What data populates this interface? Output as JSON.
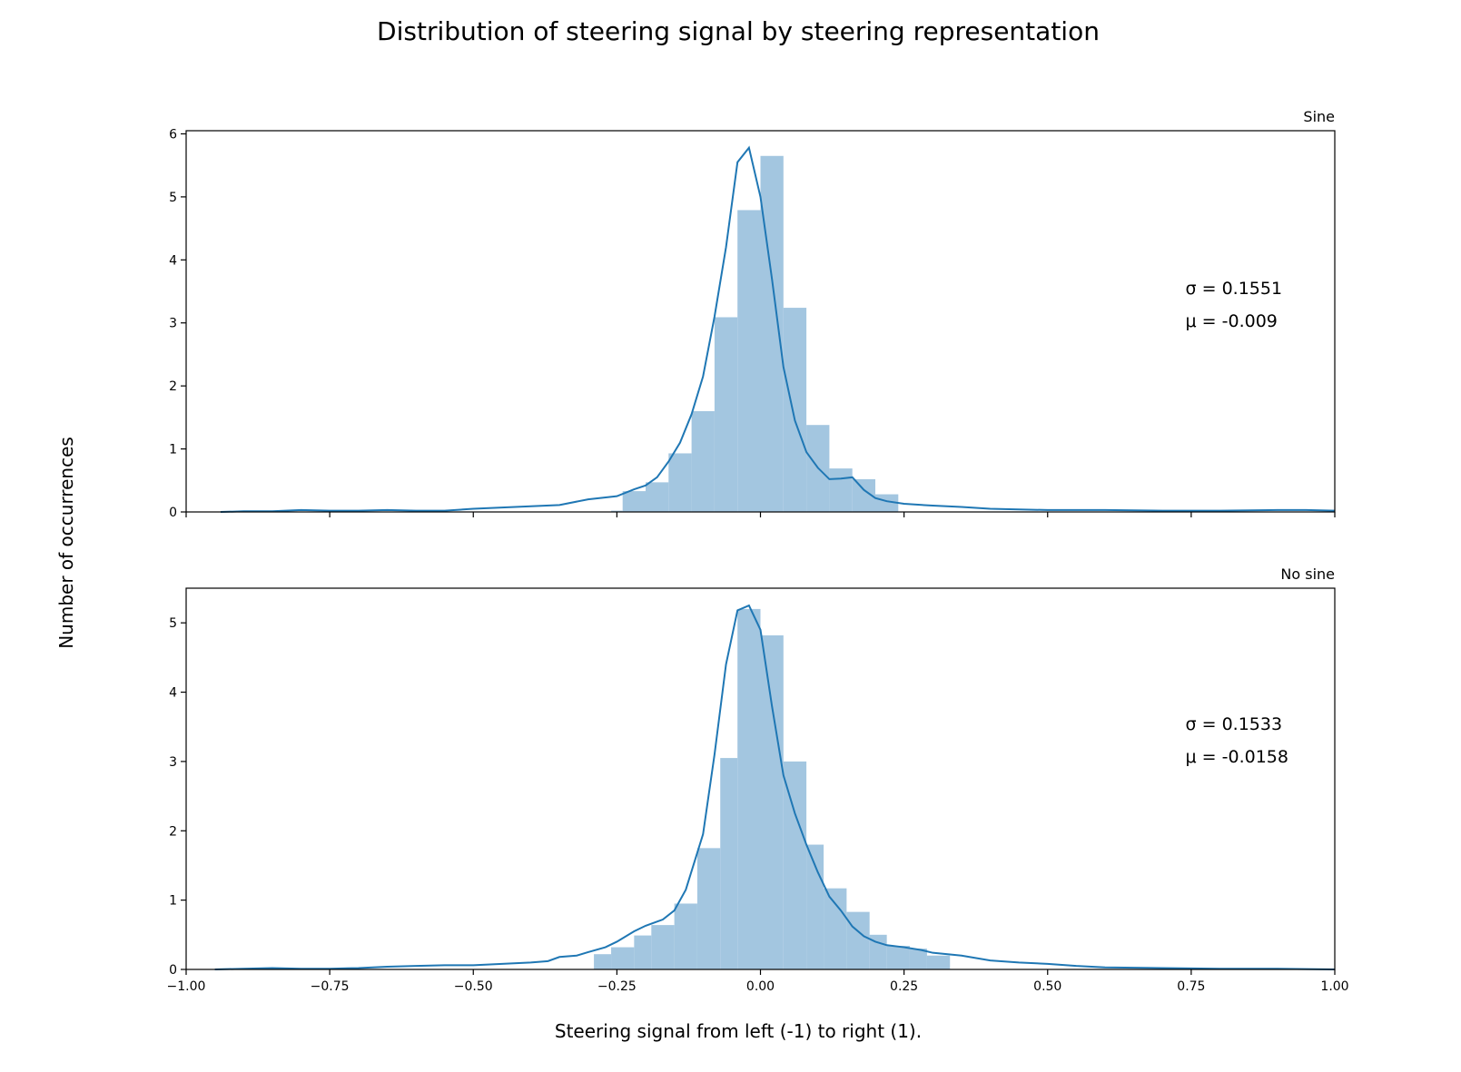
{
  "figure": {
    "title": "Distribution of steering signal by steering representation",
    "xlabel": "Steering signal from left (-1) to right (1).",
    "ylabel": "Number of occurrences"
  },
  "colors": {
    "bar": "#a3c6e0",
    "line": "#1f77b4",
    "axis": "#000000"
  },
  "chart_data": [
    {
      "type": "bar",
      "title": "Sine",
      "xlim": [
        -1.0,
        1.0
      ],
      "ylim": [
        0,
        6.05
      ],
      "xticks": [
        "−1.00",
        "−0.75",
        "−0.50",
        "−0.25",
        "0.00",
        "0.25",
        "0.50",
        "0.75",
        "1.00"
      ],
      "xtick_values": [
        -1.0,
        -0.75,
        -0.5,
        -0.25,
        0.0,
        0.25,
        0.5,
        0.75,
        1.0
      ],
      "show_xtick_labels": false,
      "yticks": [
        0,
        1,
        2,
        3,
        4,
        5,
        6
      ],
      "stats": {
        "sigma": "σ = 0.1551",
        "mu": "μ = -0.009"
      },
      "bin_edges": [
        -0.26,
        -0.24,
        -0.2,
        -0.16,
        -0.12,
        -0.08,
        -0.04,
        0.0,
        0.04,
        0.08,
        0.12,
        0.16,
        0.2,
        0.24
      ],
      "values": [
        0.02,
        0.33,
        0.47,
        0.93,
        1.6,
        3.09,
        4.79,
        5.65,
        3.24,
        1.38,
        0.69,
        0.52,
        0.28
      ],
      "kde_x": [
        -0.94,
        -0.9,
        -0.85,
        -0.8,
        -0.75,
        -0.7,
        -0.65,
        -0.6,
        -0.55,
        -0.5,
        -0.45,
        -0.4,
        -0.35,
        -0.3,
        -0.25,
        -0.22,
        -0.2,
        -0.18,
        -0.16,
        -0.14,
        -0.12,
        -0.1,
        -0.08,
        -0.06,
        -0.04,
        -0.02,
        0.0,
        0.02,
        0.04,
        0.06,
        0.08,
        0.1,
        0.12,
        0.14,
        0.16,
        0.18,
        0.2,
        0.22,
        0.25,
        0.3,
        0.35,
        0.4,
        0.45,
        0.5,
        0.6,
        0.7,
        0.8,
        0.9,
        0.95,
        1.0
      ],
      "kde_y": [
        0.0,
        0.01,
        0.01,
        0.03,
        0.02,
        0.02,
        0.03,
        0.02,
        0.02,
        0.05,
        0.07,
        0.09,
        0.11,
        0.2,
        0.25,
        0.36,
        0.42,
        0.55,
        0.8,
        1.1,
        1.55,
        2.15,
        3.1,
        4.2,
        5.55,
        5.78,
        5.0,
        3.7,
        2.3,
        1.45,
        0.95,
        0.7,
        0.52,
        0.53,
        0.55,
        0.35,
        0.22,
        0.17,
        0.13,
        0.1,
        0.08,
        0.05,
        0.04,
        0.03,
        0.03,
        0.02,
        0.02,
        0.03,
        0.03,
        0.02
      ]
    },
    {
      "type": "bar",
      "title": "No sine",
      "xlim": [
        -1.0,
        1.0
      ],
      "ylim": [
        0,
        5.5
      ],
      "xticks": [
        "−1.00",
        "−0.75",
        "−0.50",
        "−0.25",
        "0.00",
        "0.25",
        "0.50",
        "0.75",
        "1.00"
      ],
      "xtick_values": [
        -1.0,
        -0.75,
        -0.5,
        -0.25,
        0.0,
        0.25,
        0.5,
        0.75,
        1.0
      ],
      "show_xtick_labels": true,
      "yticks": [
        0,
        1,
        2,
        3,
        4,
        5
      ],
      "stats": {
        "sigma": "σ = 0.1533",
        "mu": "μ = -0.0158"
      },
      "bin_edges": [
        -0.29,
        -0.26,
        -0.22,
        -0.19,
        -0.15,
        -0.11,
        -0.07,
        -0.04,
        -0.0,
        0.04,
        0.08,
        0.11,
        0.15,
        0.19,
        0.22,
        0.26,
        0.29,
        0.33
      ],
      "values": [
        0.22,
        0.32,
        0.49,
        0.64,
        0.95,
        1.75,
        3.05,
        5.2,
        4.82,
        3.0,
        1.8,
        1.17,
        0.83,
        0.5,
        0.34,
        0.3,
        0.2
      ],
      "kde_x": [
        -0.95,
        -0.9,
        -0.85,
        -0.8,
        -0.75,
        -0.7,
        -0.65,
        -0.6,
        -0.55,
        -0.5,
        -0.45,
        -0.4,
        -0.37,
        -0.35,
        -0.32,
        -0.3,
        -0.27,
        -0.25,
        -0.22,
        -0.2,
        -0.17,
        -0.15,
        -0.13,
        -0.1,
        -0.08,
        -0.06,
        -0.04,
        -0.02,
        0.0,
        0.02,
        0.04,
        0.06,
        0.08,
        0.1,
        0.12,
        0.14,
        0.16,
        0.18,
        0.2,
        0.22,
        0.25,
        0.28,
        0.3,
        0.35,
        0.4,
        0.45,
        0.5,
        0.55,
        0.6,
        0.7,
        0.8,
        0.9,
        1.0
      ],
      "kde_y": [
        0.0,
        0.01,
        0.02,
        0.01,
        0.01,
        0.02,
        0.04,
        0.05,
        0.06,
        0.06,
        0.08,
        0.1,
        0.12,
        0.18,
        0.2,
        0.25,
        0.32,
        0.4,
        0.55,
        0.63,
        0.72,
        0.85,
        1.15,
        1.95,
        3.1,
        4.4,
        5.18,
        5.25,
        4.9,
        3.8,
        2.8,
        2.25,
        1.8,
        1.4,
        1.05,
        0.85,
        0.62,
        0.48,
        0.4,
        0.35,
        0.32,
        0.28,
        0.24,
        0.2,
        0.13,
        0.1,
        0.08,
        0.05,
        0.03,
        0.02,
        0.01,
        0.01,
        0.0
      ]
    }
  ]
}
